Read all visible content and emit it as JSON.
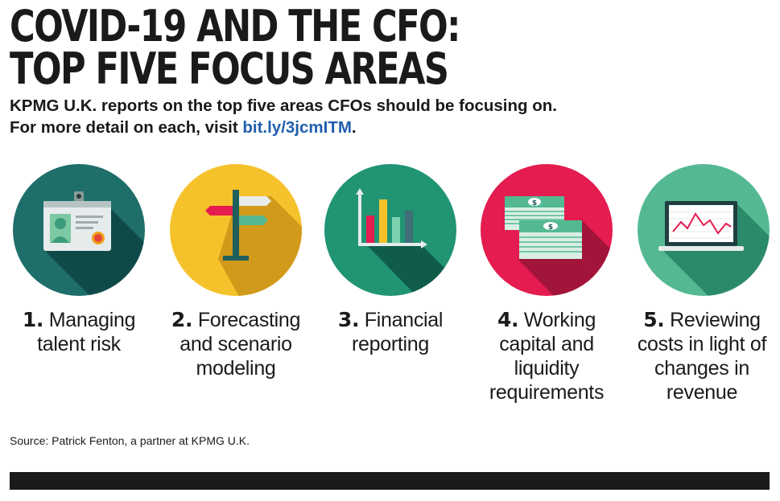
{
  "title": {
    "line1": "COVID-19 AND THE CFO:",
    "line2": "TOP FIVE FOCUS AREAS"
  },
  "subtitle": {
    "line1": "KPMG U.K. reports on the top five areas CFOs should be focusing on.",
    "line2_prefix": "For more detail on each, visit ",
    "link": "bit.ly/3jcmITM",
    "line2_suffix": "."
  },
  "focus_areas": [
    {
      "number": "1.",
      "line1": "Managing",
      "line2": "talent risk",
      "line3": "",
      "line4": "",
      "icon": "id-badge-icon",
      "color": "#1e6e6a"
    },
    {
      "number": "2.",
      "line1": "Forecasting",
      "line2": "and scenario",
      "line3": "modeling",
      "line4": "",
      "icon": "signpost-icon",
      "color": "#f5c22b"
    },
    {
      "number": "3.",
      "line1": "Financial",
      "line2": "reporting",
      "line3": "",
      "line4": "",
      "icon": "bar-chart-icon",
      "color": "#219474"
    },
    {
      "number": "4.",
      "line1": "Working",
      "line2": "capital and",
      "line3": "liquidity",
      "line4": "requirements",
      "icon": "cash-stacks-icon",
      "color": "#e41c4f"
    },
    {
      "number": "5.",
      "line1": "Reviewing",
      "line2": "costs in light of",
      "line3": "changes in",
      "line4": "revenue",
      "icon": "laptop-chart-icon",
      "color": "#54b993"
    }
  ],
  "source": "Source: Patrick Fenton, a partner at KPMG U.K."
}
